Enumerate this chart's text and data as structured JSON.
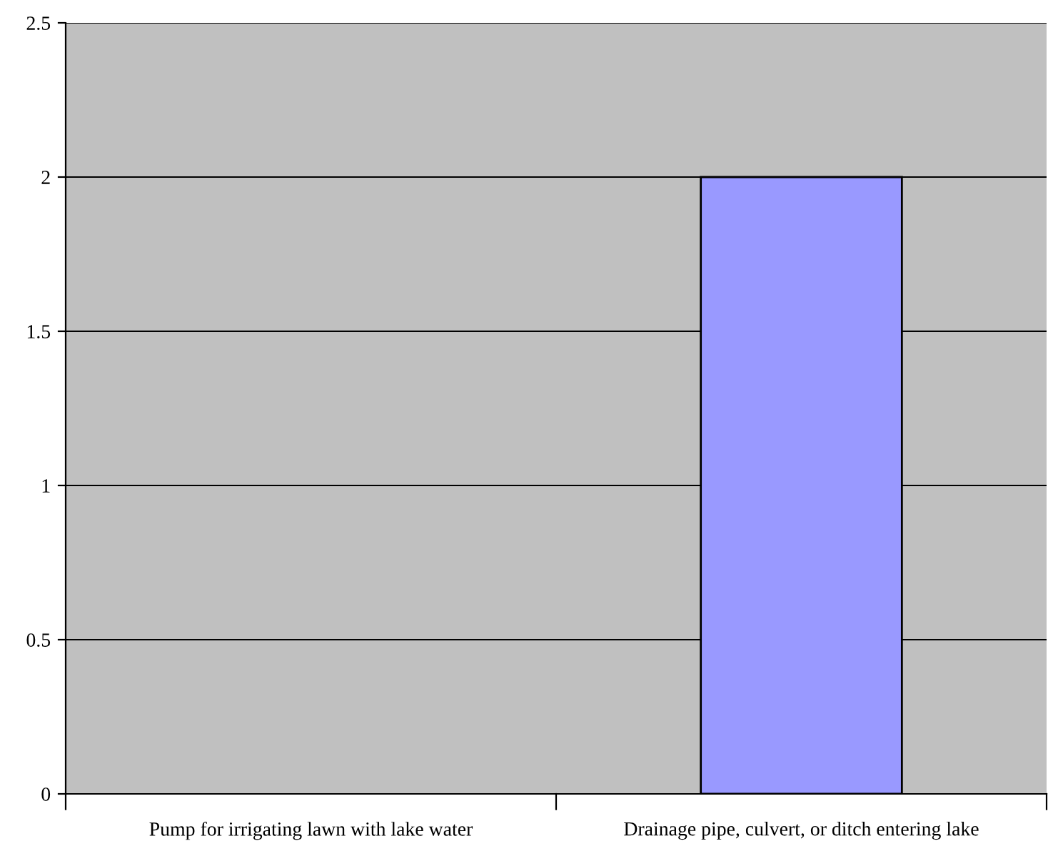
{
  "chart_data": {
    "type": "bar",
    "categories": [
      "Pump for irrigating lawn with lake water",
      "Drainage pipe, culvert, or ditch entering lake"
    ],
    "values": [
      0,
      2
    ],
    "color": "#9999ff",
    "ylim": [
      0,
      2.5
    ],
    "yticks": [
      0,
      0.5,
      1,
      1.5,
      2,
      2.5
    ],
    "grid": "y"
  }
}
